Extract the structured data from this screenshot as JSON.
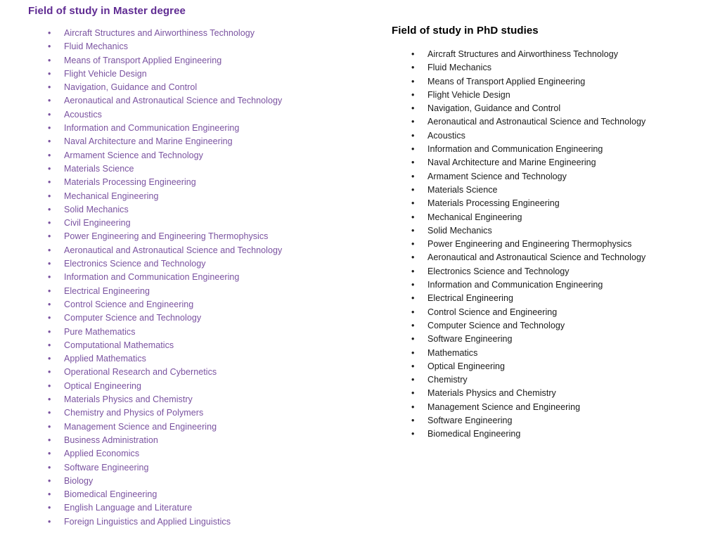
{
  "master_section": {
    "title": "Field of study in Master degree",
    "title_color": "#5f2b92",
    "item_color": "#7a52a0",
    "items": [
      "Aircraft Structures and Airworthiness Technology",
      "Fluid Mechanics",
      "Means of Transport Applied Engineering",
      "Flight Vehicle Design",
      "Navigation, Guidance and Control",
      "Aeronautical and Astronautical Science and Technology",
      "Acoustics",
      "Information and Communication Engineering",
      "Naval Architecture and Marine Engineering",
      "Armament Science and Technology",
      "Materials Science",
      "Materials Processing Engineering",
      "Mechanical Engineering",
      "Solid Mechanics",
      "Civil Engineering",
      "Power Engineering and Engineering Thermophysics",
      "Aeronautical and Astronautical Science and Technology",
      "Electronics Science and Technology",
      "Information and Communication Engineering",
      "Electrical Engineering",
      "Control Science and Engineering",
      "Computer Science and Technology",
      "Pure Mathematics",
      "Computational Mathematics",
      "Applied Mathematics",
      "Operational Research and Cybernetics",
      "Optical Engineering",
      "Materials Physics and Chemistry",
      "Chemistry and Physics of Polymers",
      "Management Science and Engineering",
      "Business Administration",
      "Applied Economics",
      "Software Engineering",
      "Biology",
      "Biomedical Engineering",
      "English Language and Literature",
      "Foreign Linguistics and Applied Linguistics"
    ]
  },
  "phd_section": {
    "title": "Field of study in PhD studies",
    "title_color": "#000000",
    "item_color": "#1a1a1a",
    "items": [
      "Aircraft Structures and Airworthiness Technology",
      "Fluid Mechanics",
      "Means of Transport Applied Engineering",
      "Flight Vehicle Design",
      "Navigation, Guidance and Control",
      "Aeronautical and Astronautical Science and Technology",
      "Acoustics",
      "Information and Communication Engineering",
      "Naval Architecture and Marine Engineering",
      "Armament Science and Technology",
      "Materials Science",
      "Materials Processing Engineering",
      "Mechanical Engineering",
      "Solid Mechanics",
      "Power Engineering and Engineering Thermophysics",
      "Aeronautical and Astronautical Science and Technology",
      "Electronics Science and Technology",
      "Information and Communication Engineering",
      "Electrical Engineering",
      "Control Science and Engineering",
      "Computer Science and Technology",
      "Software Engineering",
      "Mathematics",
      "Optical Engineering",
      "Chemistry",
      "Materials Physics and Chemistry",
      "Management Science and Engineering",
      "Software Engineering",
      "Biomedical Engineering"
    ]
  }
}
